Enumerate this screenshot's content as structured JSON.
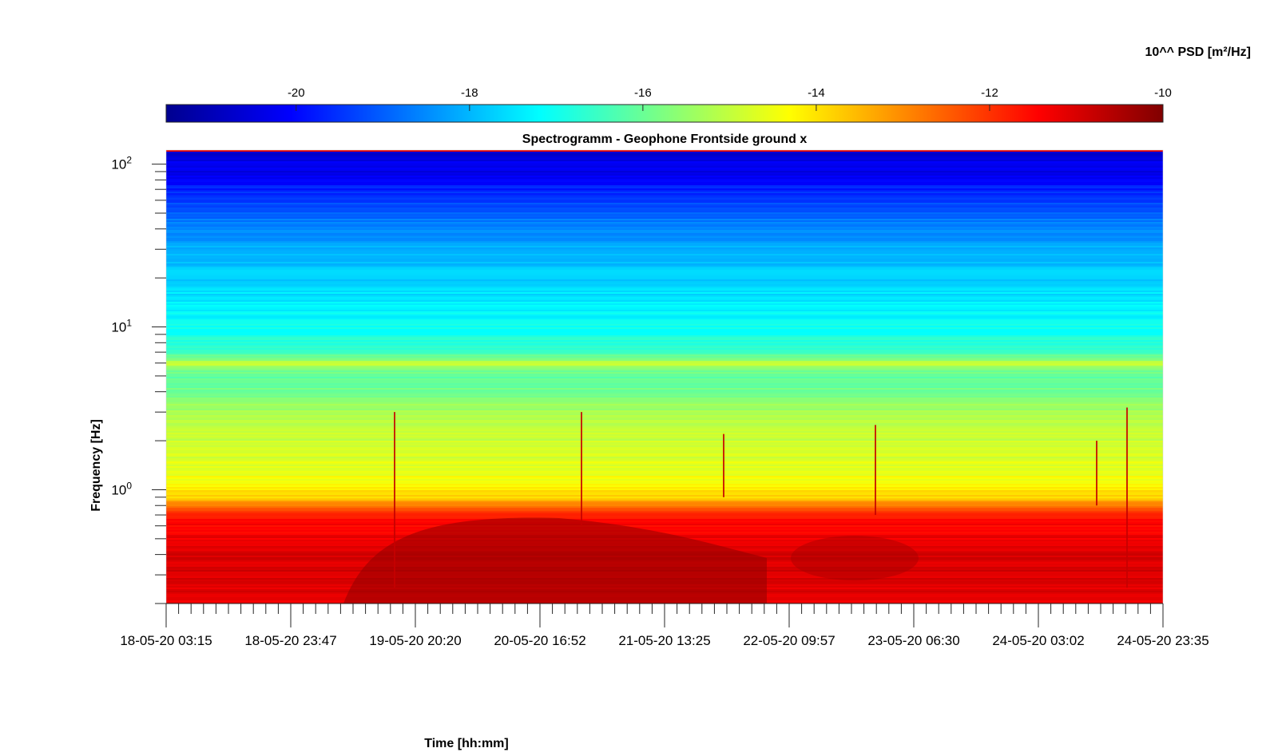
{
  "chart_data": {
    "type": "heatmap",
    "title": "Spectrogramm - Geophone Frontside ground x",
    "xlabel": "Time [hh:mm]",
    "ylabel": "Frequency [Hz]",
    "y_scale": "log",
    "ylim": [
      0.2,
      122
    ],
    "x_tick_labels": [
      "18-05-20 03:15",
      "18-05-20 23:47",
      "19-05-20 20:20",
      "20-05-20 16:52",
      "21-05-20 13:25",
      "22-05-20 09:57",
      "23-05-20 06:30",
      "24-05-20 03:02",
      "24-05-20 23:35"
    ],
    "y_ticks": [
      {
        "value": 1,
        "base": "10",
        "exponent": "0"
      },
      {
        "value": 10,
        "base": "10",
        "exponent": "1"
      },
      {
        "value": 100,
        "base": "10",
        "exponent": "2"
      }
    ],
    "colorbar": {
      "label": "10^^ PSD [m²/Hz]",
      "colormap": "jet",
      "clim": [
        -21.5,
        -10
      ],
      "ticks": [
        "-20",
        "-18",
        "-16",
        "-14",
        "-12",
        "-10"
      ],
      "tick_values": [
        -20,
        -18,
        -16,
        -14,
        -12,
        -10
      ]
    },
    "bands": [
      {
        "freq_range_hz": [
          80,
          122
        ],
        "log_psd": -20.2
      },
      {
        "freq_range_hz": [
          40,
          80
        ],
        "log_psd": -19.4
      },
      {
        "freq_range_hz": [
          10,
          40
        ],
        "log_psd": -17.8
      },
      {
        "freq_range_hz": [
          6,
          6.3
        ],
        "log_psd": -14.8
      },
      {
        "freq_range_hz": [
          1.2,
          5
        ],
        "log_psd": -15.0
      },
      {
        "freq_range_hz": [
          0.8,
          1.2
        ],
        "log_psd": -14.2
      },
      {
        "freq_range_hz": [
          0.2,
          0.8
        ],
        "log_psd": -11.3
      }
    ]
  }
}
